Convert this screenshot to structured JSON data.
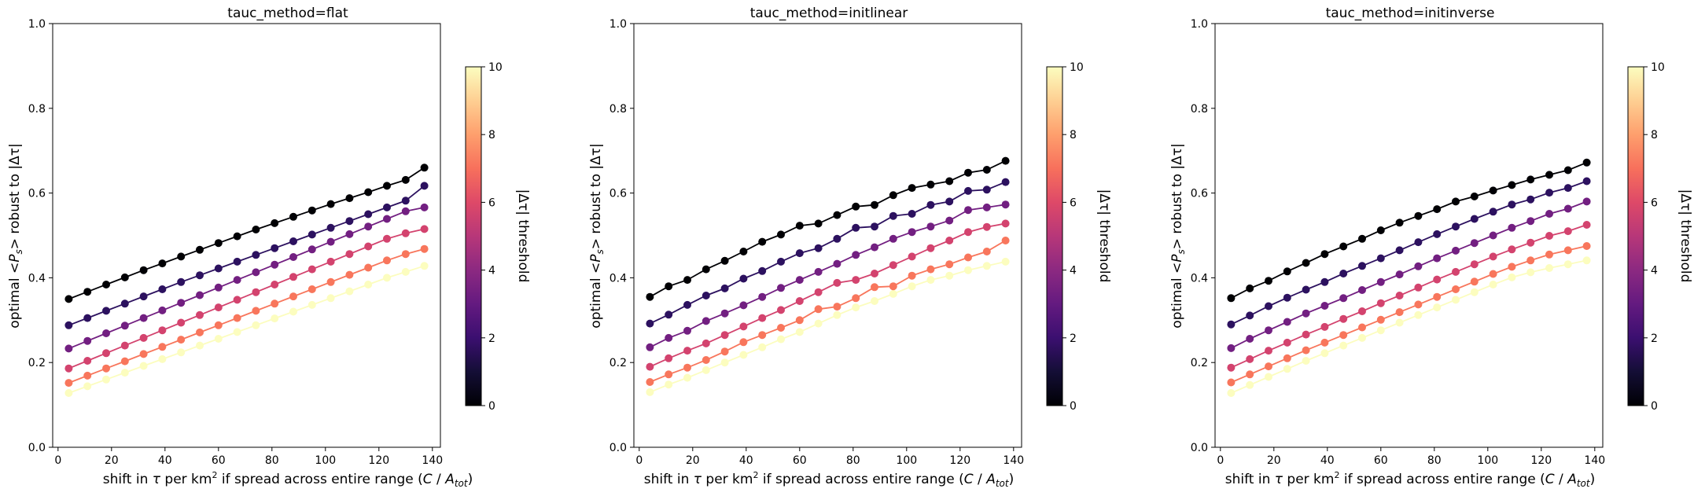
{
  "figure": {
    "panels": [
      {
        "title": "tauc_method=flat"
      },
      {
        "title": "tauc_method=initlinear"
      },
      {
        "title": "tauc_method=initinverse"
      }
    ],
    "xlabel_parts": [
      "shift in ",
      "τ",
      " per km",
      "2",
      " if spread across entire range (",
      "C",
      " / ",
      "A",
      "tot",
      ")"
    ],
    "ylabel_parts": [
      "optimal <",
      "P",
      "s",
      "> robust to |Δτ|"
    ],
    "colorbar": {
      "label": "|Δτ| threshold",
      "ticks": [
        "0",
        "2",
        "4",
        "6",
        "8",
        "10"
      ],
      "range": [
        0,
        10
      ],
      "colormap": "magma"
    }
  },
  "chart_data": [
    {
      "type": "line",
      "title": "tauc_method=flat",
      "xlabel": "shift in τ per km² if spread across entire range (C / A_tot)",
      "ylabel": "optimal <P_s> robust to |Δτ|",
      "xlim": [
        -2,
        143
      ],
      "ylim": [
        0.0,
        1.0
      ],
      "xticks": [
        0,
        20,
        40,
        60,
        80,
        100,
        120,
        140
      ],
      "yticks": [
        0.0,
        0.2,
        0.4,
        0.6,
        0.8,
        1.0
      ],
      "x": [
        4,
        11,
        18,
        25,
        32,
        39,
        46,
        53,
        60,
        67,
        74,
        81,
        88,
        95,
        102,
        109,
        116,
        123,
        130,
        137
      ],
      "series": [
        {
          "color": "#000004",
          "values": [
            0.35,
            0.367,
            0.384,
            0.401,
            0.418,
            0.434,
            0.45,
            0.466,
            0.482,
            0.498,
            0.514,
            0.529,
            0.544,
            0.559,
            0.574,
            0.588,
            0.602,
            0.617,
            0.631,
            0.66
          ]
        },
        {
          "color": "#2c115f",
          "values": [
            0.288,
            0.305,
            0.322,
            0.339,
            0.356,
            0.373,
            0.39,
            0.406,
            0.422,
            0.438,
            0.454,
            0.47,
            0.486,
            0.502,
            0.518,
            0.534,
            0.55,
            0.566,
            0.582,
            0.617
          ]
        },
        {
          "color": "#721f81",
          "values": [
            0.233,
            0.251,
            0.269,
            0.287,
            0.305,
            0.323,
            0.341,
            0.359,
            0.377,
            0.395,
            0.413,
            0.431,
            0.449,
            0.467,
            0.485,
            0.503,
            0.521,
            0.539,
            0.557,
            0.566
          ]
        },
        {
          "color": "#d3436e",
          "values": [
            0.186,
            0.204,
            0.222,
            0.24,
            0.258,
            0.276,
            0.294,
            0.312,
            0.33,
            0.348,
            0.366,
            0.384,
            0.402,
            0.42,
            0.438,
            0.456,
            0.474,
            0.492,
            0.505,
            0.515
          ]
        },
        {
          "color": "#f8765c",
          "values": [
            0.152,
            0.169,
            0.186,
            0.203,
            0.22,
            0.237,
            0.254,
            0.271,
            0.288,
            0.305,
            0.322,
            0.339,
            0.356,
            0.373,
            0.39,
            0.407,
            0.424,
            0.441,
            0.456,
            0.468
          ]
        },
        {
          "color": "#fcfdbf",
          "values": [
            0.128,
            0.144,
            0.16,
            0.176,
            0.192,
            0.208,
            0.224,
            0.24,
            0.256,
            0.272,
            0.288,
            0.304,
            0.32,
            0.336,
            0.352,
            0.368,
            0.384,
            0.4,
            0.414,
            0.428
          ]
        }
      ]
    },
    {
      "type": "line",
      "title": "tauc_method=initlinear",
      "xlabel": "shift in τ per km² if spread across entire range (C / A_tot)",
      "ylabel": "optimal <P_s> robust to |Δτ|",
      "xlim": [
        -2,
        143
      ],
      "ylim": [
        0.0,
        1.0
      ],
      "xticks": [
        0,
        20,
        40,
        60,
        80,
        100,
        120,
        140
      ],
      "yticks": [
        0.0,
        0.2,
        0.4,
        0.6,
        0.8,
        1.0
      ],
      "x": [
        4,
        11,
        18,
        25,
        32,
        39,
        46,
        53,
        60,
        67,
        74,
        81,
        88,
        95,
        102,
        109,
        116,
        123,
        130,
        137
      ],
      "series": [
        {
          "color": "#000004",
          "values": [
            0.355,
            0.38,
            0.395,
            0.42,
            0.44,
            0.462,
            0.485,
            0.502,
            0.523,
            0.528,
            0.548,
            0.568,
            0.572,
            0.595,
            0.612,
            0.62,
            0.628,
            0.648,
            0.655,
            0.676
          ]
        },
        {
          "color": "#2c115f",
          "values": [
            0.292,
            0.313,
            0.336,
            0.358,
            0.375,
            0.398,
            0.416,
            0.438,
            0.458,
            0.47,
            0.492,
            0.518,
            0.521,
            0.546,
            0.551,
            0.572,
            0.58,
            0.605,
            0.608,
            0.626
          ]
        },
        {
          "color": "#721f81",
          "values": [
            0.236,
            0.258,
            0.275,
            0.298,
            0.316,
            0.335,
            0.355,
            0.376,
            0.395,
            0.414,
            0.433,
            0.454,
            0.472,
            0.492,
            0.508,
            0.521,
            0.535,
            0.56,
            0.566,
            0.573
          ]
        },
        {
          "color": "#d3436e",
          "values": [
            0.19,
            0.21,
            0.228,
            0.245,
            0.265,
            0.285,
            0.305,
            0.324,
            0.345,
            0.366,
            0.388,
            0.395,
            0.41,
            0.43,
            0.45,
            0.47,
            0.488,
            0.508,
            0.52,
            0.528
          ]
        },
        {
          "color": "#f8765c",
          "values": [
            0.154,
            0.172,
            0.188,
            0.206,
            0.226,
            0.248,
            0.265,
            0.282,
            0.3,
            0.326,
            0.332,
            0.352,
            0.378,
            0.38,
            0.405,
            0.42,
            0.432,
            0.448,
            0.462,
            0.488
          ]
        },
        {
          "color": "#fcfdbf",
          "values": [
            0.13,
            0.148,
            0.164,
            0.182,
            0.2,
            0.218,
            0.236,
            0.255,
            0.272,
            0.292,
            0.312,
            0.33,
            0.345,
            0.362,
            0.38,
            0.395,
            0.405,
            0.418,
            0.428,
            0.438
          ]
        }
      ]
    },
    {
      "type": "line",
      "title": "tauc_method=initinverse",
      "xlabel": "shift in τ per km² if spread across entire range (C / A_tot)",
      "ylabel": "optimal <P_s> robust to |Δτ|",
      "xlim": [
        -2,
        143
      ],
      "ylim": [
        0.0,
        1.0
      ],
      "xticks": [
        0,
        20,
        40,
        60,
        80,
        100,
        120,
        140
      ],
      "yticks": [
        0.0,
        0.2,
        0.4,
        0.6,
        0.8,
        1.0
      ],
      "x": [
        4,
        11,
        18,
        25,
        32,
        39,
        46,
        53,
        60,
        67,
        74,
        81,
        88,
        95,
        102,
        109,
        116,
        123,
        130,
        137
      ],
      "series": [
        {
          "color": "#000004",
          "values": [
            0.352,
            0.375,
            0.393,
            0.415,
            0.435,
            0.456,
            0.474,
            0.492,
            0.512,
            0.53,
            0.546,
            0.562,
            0.58,
            0.592,
            0.606,
            0.619,
            0.632,
            0.643,
            0.654,
            0.672
          ]
        },
        {
          "color": "#2c115f",
          "values": [
            0.29,
            0.311,
            0.333,
            0.353,
            0.372,
            0.39,
            0.41,
            0.428,
            0.446,
            0.465,
            0.484,
            0.503,
            0.521,
            0.539,
            0.556,
            0.573,
            0.585,
            0.601,
            0.612,
            0.628
          ]
        },
        {
          "color": "#721f81",
          "values": [
            0.234,
            0.256,
            0.276,
            0.296,
            0.316,
            0.334,
            0.352,
            0.371,
            0.39,
            0.408,
            0.427,
            0.446,
            0.464,
            0.482,
            0.5,
            0.518,
            0.534,
            0.551,
            0.563,
            0.58
          ]
        },
        {
          "color": "#d3436e",
          "values": [
            0.188,
            0.208,
            0.228,
            0.247,
            0.266,
            0.284,
            0.303,
            0.321,
            0.34,
            0.358,
            0.377,
            0.396,
            0.414,
            0.432,
            0.45,
            0.467,
            0.483,
            0.499,
            0.51,
            0.525
          ]
        },
        {
          "color": "#f8765c",
          "values": [
            0.153,
            0.172,
            0.191,
            0.21,
            0.229,
            0.247,
            0.265,
            0.283,
            0.301,
            0.319,
            0.337,
            0.355,
            0.373,
            0.391,
            0.409,
            0.426,
            0.441,
            0.455,
            0.465,
            0.475
          ]
        },
        {
          "color": "#fcfdbf",
          "values": [
            0.128,
            0.147,
            0.166,
            0.185,
            0.204,
            0.222,
            0.24,
            0.258,
            0.276,
            0.294,
            0.312,
            0.33,
            0.348,
            0.366,
            0.384,
            0.401,
            0.413,
            0.423,
            0.432,
            0.441
          ]
        }
      ]
    }
  ]
}
